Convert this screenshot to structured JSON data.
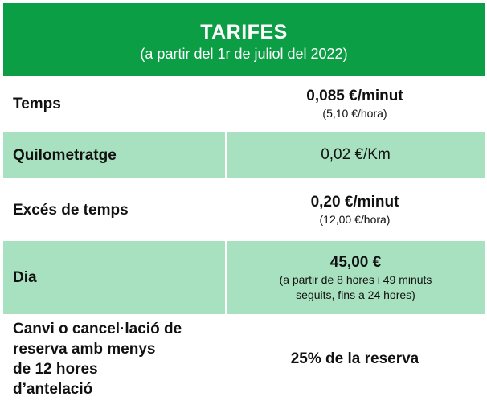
{
  "header": {
    "title": "TARIFES",
    "subtitle": "(a partir del 1r de juliol del 2022)"
  },
  "rows": [
    {
      "label": "Temps",
      "value": "0,085 €/minut",
      "note": "(5,10 €/hora)"
    },
    {
      "label": "Quilometratge",
      "value": "0,02 €/Km"
    },
    {
      "label": "Excés de temps",
      "value": "0,20 €/minut",
      "note": "(12,00 €/hora)"
    },
    {
      "label": "Dia",
      "value": "45,00 €",
      "note_line1": "(a partir de 8 hores i 49 minuts",
      "note_line2": "seguits, fins a 24 hores)"
    },
    {
      "label_line1": "Canvi o cancel·lació de",
      "label_line2": "reserva amb menys",
      "label_line3": "de 12 hores",
      "label_line4": "d’antelació",
      "value": "25% de la reserva"
    }
  ],
  "colors": {
    "header_bg": "#0b9e44",
    "row_alt_bg": "#a8e1bf"
  }
}
